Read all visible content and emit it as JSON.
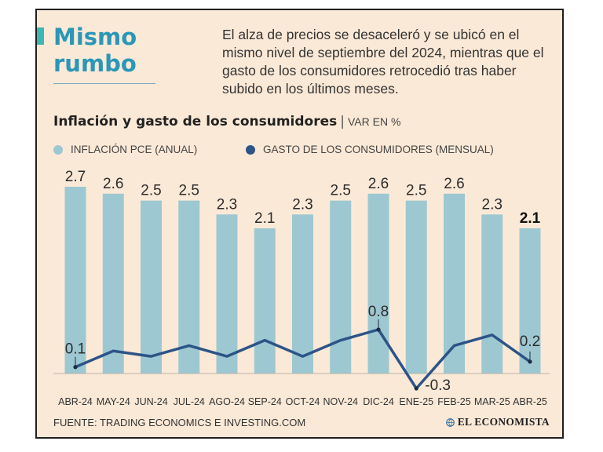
{
  "headline": {
    "line1": "Mismo",
    "line2": "rumbo"
  },
  "description": "El alza de precios se desaceleró y se ubicó en el mismo nivel de septiembre del 2024, mientras que el gasto de los consumidores retrocedió tras haber subido en los últimos meses.",
  "source": "FUENTE: TRADING ECONOMICS E INVESTING.COM",
  "brand": {
    "name": "EL ECONOMISTA",
    "icon": "globe-icon"
  },
  "colors": {
    "background": "#fbe9d7",
    "bars": "#9dc8d1",
    "line": "#2d5487",
    "headline": "#2a97b8",
    "accent": "#3db7b3"
  },
  "chart_data": {
    "type": "bar",
    "title": "Inflación y gasto de los consumidores",
    "unit": "VAR EN %",
    "legend_position": "top-left",
    "grid": false,
    "categories": [
      "ABR-24",
      "MAY-24",
      "JUN-24",
      "JUL-24",
      "AGO-24",
      "SEP-24",
      "OCT-24",
      "NOV-24",
      "DIC-24",
      "ENE-25",
      "FEB-25",
      "MAR-25",
      "ABR-25"
    ],
    "series": [
      {
        "name": "INFLACIÓN PCE (ANUAL)",
        "type": "bar",
        "values": [
          2.7,
          2.6,
          2.5,
          2.5,
          2.3,
          2.1,
          2.3,
          2.5,
          2.6,
          2.5,
          2.6,
          2.3,
          2.1
        ],
        "labels": [
          "2.7",
          "2.6",
          "2.5",
          "2.5",
          "2.3",
          "2.1",
          "2.3",
          "2.5",
          "2.6",
          "2.5",
          "2.6",
          "2.3",
          "2.1"
        ],
        "ylim": [
          0,
          2.7
        ]
      },
      {
        "name": "GASTO DE LOS CONSUMIDORES (MENSUAL)",
        "type": "line",
        "values": [
          0.1,
          0.4,
          0.3,
          0.5,
          0.3,
          0.6,
          0.3,
          0.6,
          0.8,
          -0.3,
          0.5,
          0.7,
          0.2
        ],
        "labels": [
          "0.1",
          "",
          "",
          "",
          "",
          "",
          "",
          "",
          "0.8",
          "-0.3",
          "",
          "",
          "0.2"
        ],
        "ylim": [
          -0.3,
          0.8
        ]
      }
    ]
  }
}
